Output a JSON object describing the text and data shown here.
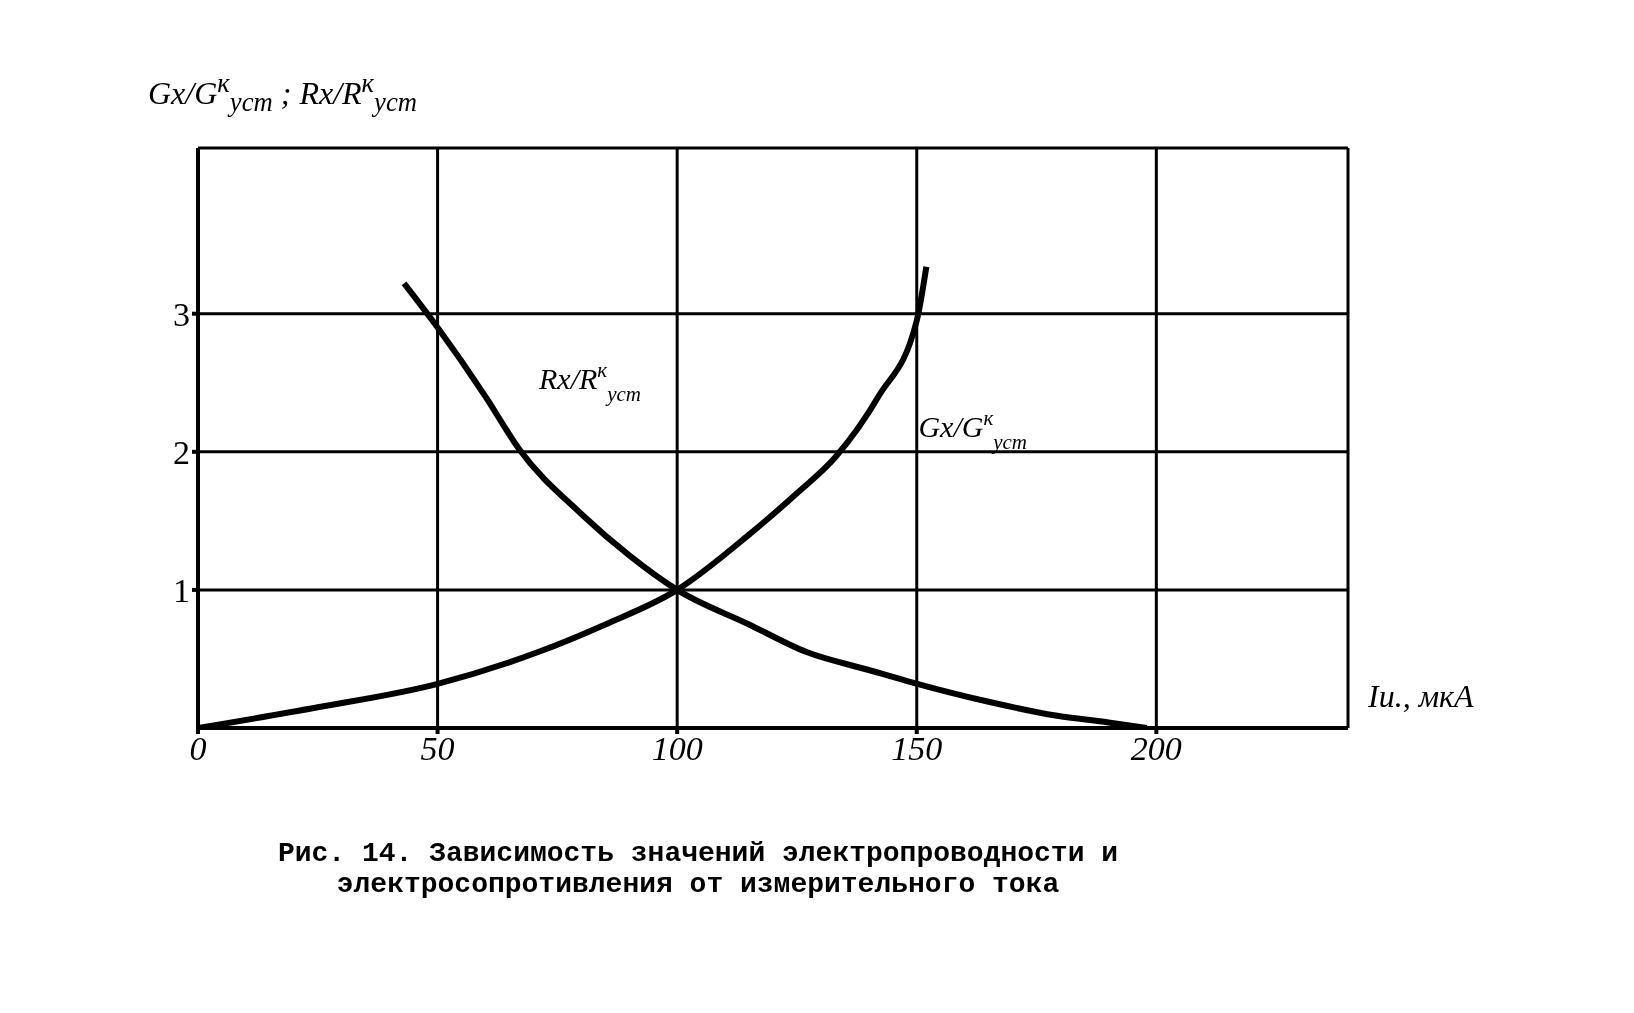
{
  "chart_data": {
    "type": "line",
    "ylabel": "Gx/G$^{к}$$_{уст}$ ; Rx/R$^{к}$$_{уст}$",
    "xlabel": "Iи., мкА",
    "xlim": [
      0,
      240
    ],
    "xticks": [
      0,
      50,
      100,
      150,
      200
    ],
    "ylim": [
      0,
      4.2
    ],
    "yticks": [
      1,
      2,
      3
    ],
    "grid": true,
    "marker": "none",
    "line_style": "solid",
    "series": [
      {
        "name": "Rx/R$^{к}$$_{уст}$",
        "color": "#000000",
        "x": [
          43,
          50,
          60,
          67,
          80,
          90,
          100,
          115,
          127,
          140,
          148,
          165,
          179,
          190,
          198
        ],
        "values": [
          3.22,
          2.9,
          2.4,
          2.02,
          1.55,
          1.25,
          1.0,
          0.75,
          0.55,
          0.42,
          0.34,
          0.19,
          0.09,
          0.04,
          0
        ]
      },
      {
        "name": "Gx/G$^{к}$$_{уст}$",
        "color": "#000000",
        "x": [
          0,
          25,
          50,
          71,
          85,
          100,
          115,
          125,
          133,
          142,
          150,
          152
        ],
        "values": [
          0,
          0.15,
          0.32,
          0.55,
          0.75,
          1.0,
          1.4,
          1.7,
          1.96,
          2.4,
          2.95,
          3.34
        ]
      }
    ],
    "annotations": [
      "Рис. 14. Зависимость значений электропроводности и электросопротивления от измерительного тока"
    ]
  }
}
